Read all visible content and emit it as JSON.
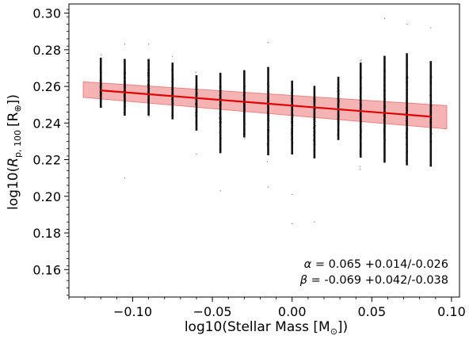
{
  "chart_data": {
    "type": "scatter",
    "title": "",
    "xlabel": "log10(Stellar Mass [M",
    "xlabel_sub": "⊙",
    "xlabel_close": "])",
    "ylabel_pre": "log10(",
    "ylabel_R": "R",
    "ylabel_sub": "p, 100",
    "ylabel_unit": "[R",
    "ylabel_unit_sub": "⊕",
    "ylabel_close": "])",
    "xlim": [
      -0.14,
      0.105
    ],
    "ylim": [
      0.145,
      0.305
    ],
    "x_ticks": [
      -0.1,
      -0.05,
      0.0,
      0.05,
      0.1
    ],
    "x_tick_labels": [
      "−0.10",
      "−0.05",
      "0.00",
      "0.05",
      "0.10"
    ],
    "y_ticks": [
      0.16,
      0.18,
      0.2,
      0.22,
      0.24,
      0.26,
      0.28,
      0.3
    ],
    "y_tick_labels": [
      "0.16",
      "0.18",
      "0.20",
      "0.22",
      "0.24",
      "0.26",
      "0.28",
      "0.30"
    ],
    "grid": false,
    "scatter_columns": [
      {
        "x": -0.12,
        "ymin": 0.243,
        "ymax": 0.281,
        "outliers": []
      },
      {
        "x": -0.105,
        "ymin": 0.238,
        "ymax": 0.281,
        "outliers": [
          0.21,
          0.283
        ]
      },
      {
        "x": -0.09,
        "ymin": 0.238,
        "ymax": 0.281,
        "outliers": [
          0.283
        ]
      },
      {
        "x": -0.075,
        "ymin": 0.236,
        "ymax": 0.279,
        "outliers": []
      },
      {
        "x": -0.06,
        "ymin": 0.23,
        "ymax": 0.272,
        "outliers": [
          0.223
        ]
      },
      {
        "x": -0.045,
        "ymin": 0.215,
        "ymax": 0.276,
        "outliers": [
          0.203
        ]
      },
      {
        "x": -0.03,
        "ymin": 0.225,
        "ymax": 0.276,
        "outliers": []
      },
      {
        "x": -0.015,
        "ymin": 0.213,
        "ymax": 0.28,
        "outliers": [
          0.205,
          0.284
        ]
      },
      {
        "x": 0.0,
        "ymin": 0.215,
        "ymax": 0.271,
        "outliers": [
          0.185,
          0.201
        ]
      },
      {
        "x": 0.014,
        "ymin": 0.213,
        "ymax": 0.268,
        "outliers": [
          0.186
        ]
      },
      {
        "x": 0.029,
        "ymin": 0.224,
        "ymax": 0.272,
        "outliers": []
      },
      {
        "x": 0.043,
        "ymin": 0.211,
        "ymax": 0.283,
        "outliers": []
      },
      {
        "x": 0.058,
        "ymin": 0.207,
        "ymax": 0.288,
        "outliers": [
          0.297
        ]
      },
      {
        "x": 0.072,
        "ymin": 0.205,
        "ymax": 0.29,
        "outliers": [
          0.294
        ]
      },
      {
        "x": 0.087,
        "ymin": 0.205,
        "ymax": 0.285,
        "outliers": [
          0.292
        ]
      }
    ],
    "fit_line": {
      "x": [
        -0.12,
        0.087
      ],
      "y": [
        0.2578,
        0.2435
      ],
      "color": "#e00000"
    },
    "fit_band": {
      "x": [
        -0.131,
        0.097
      ],
      "upper": [
        0.2625,
        0.2495
      ],
      "lower": [
        0.254,
        0.2368
      ],
      "color": "#f08080"
    },
    "annotations": [
      {
        "symbol": "α",
        "text": " = 0.065 +0.014/-0.026"
      },
      {
        "symbol": "β",
        "text": " = -0.069 +0.042/-0.038"
      }
    ],
    "point_color": "#000000"
  }
}
